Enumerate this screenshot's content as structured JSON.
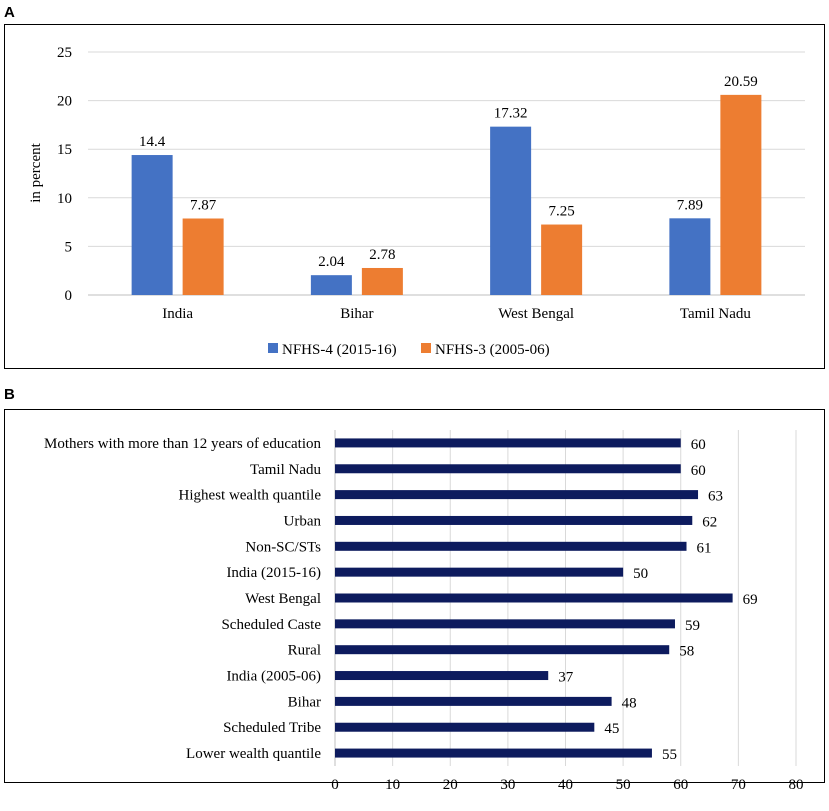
{
  "panels": {
    "a_label": "A",
    "b_label": "B"
  },
  "chart_data": [
    {
      "type": "bar",
      "title": "",
      "xlabel": "",
      "ylabel": "in percent",
      "ylim": [
        0,
        25
      ],
      "yticks": [
        0,
        5,
        10,
        15,
        20,
        25
      ],
      "grid": true,
      "legend_position": "bottom",
      "categories": [
        "India",
        "Bihar",
        "West Bengal",
        "Tamil Nadu"
      ],
      "series": [
        {
          "name": "NFHS-4 (2015-16)",
          "color": "#4472C4",
          "values": [
            14.4,
            2.04,
            17.32,
            7.89
          ],
          "labels": [
            "14.4",
            "2.04",
            "17.32",
            "7.89"
          ]
        },
        {
          "name": "NFHS-3 (2005-06)",
          "color": "#ED7D31",
          "values": [
            7.87,
            2.78,
            7.25,
            20.59
          ],
          "labels": [
            "7.87",
            "2.78",
            "7.25",
            "20.59"
          ]
        }
      ]
    },
    {
      "type": "bar",
      "orientation": "horizontal",
      "title": "",
      "xlabel": "",
      "ylabel": "",
      "xlim": [
        0,
        80
      ],
      "xticks": [
        0,
        10,
        20,
        30,
        40,
        50,
        60,
        70,
        80
      ],
      "grid": true,
      "color": "#0D1B5E",
      "categories": [
        "Mothers with more than 12 years of education",
        "Tamil Nadu",
        "Highest wealth quantile",
        "Urban",
        "Non-SC/STs",
        "India (2015-16)",
        "West Bengal",
        "Scheduled Caste",
        "Rural",
        "India (2005-06)",
        "Bihar",
        "Scheduled Tribe",
        "Lower wealth quantile"
      ],
      "values": [
        60,
        60,
        63,
        62,
        61,
        50,
        69,
        59,
        58,
        37,
        48,
        45,
        55
      ]
    }
  ]
}
